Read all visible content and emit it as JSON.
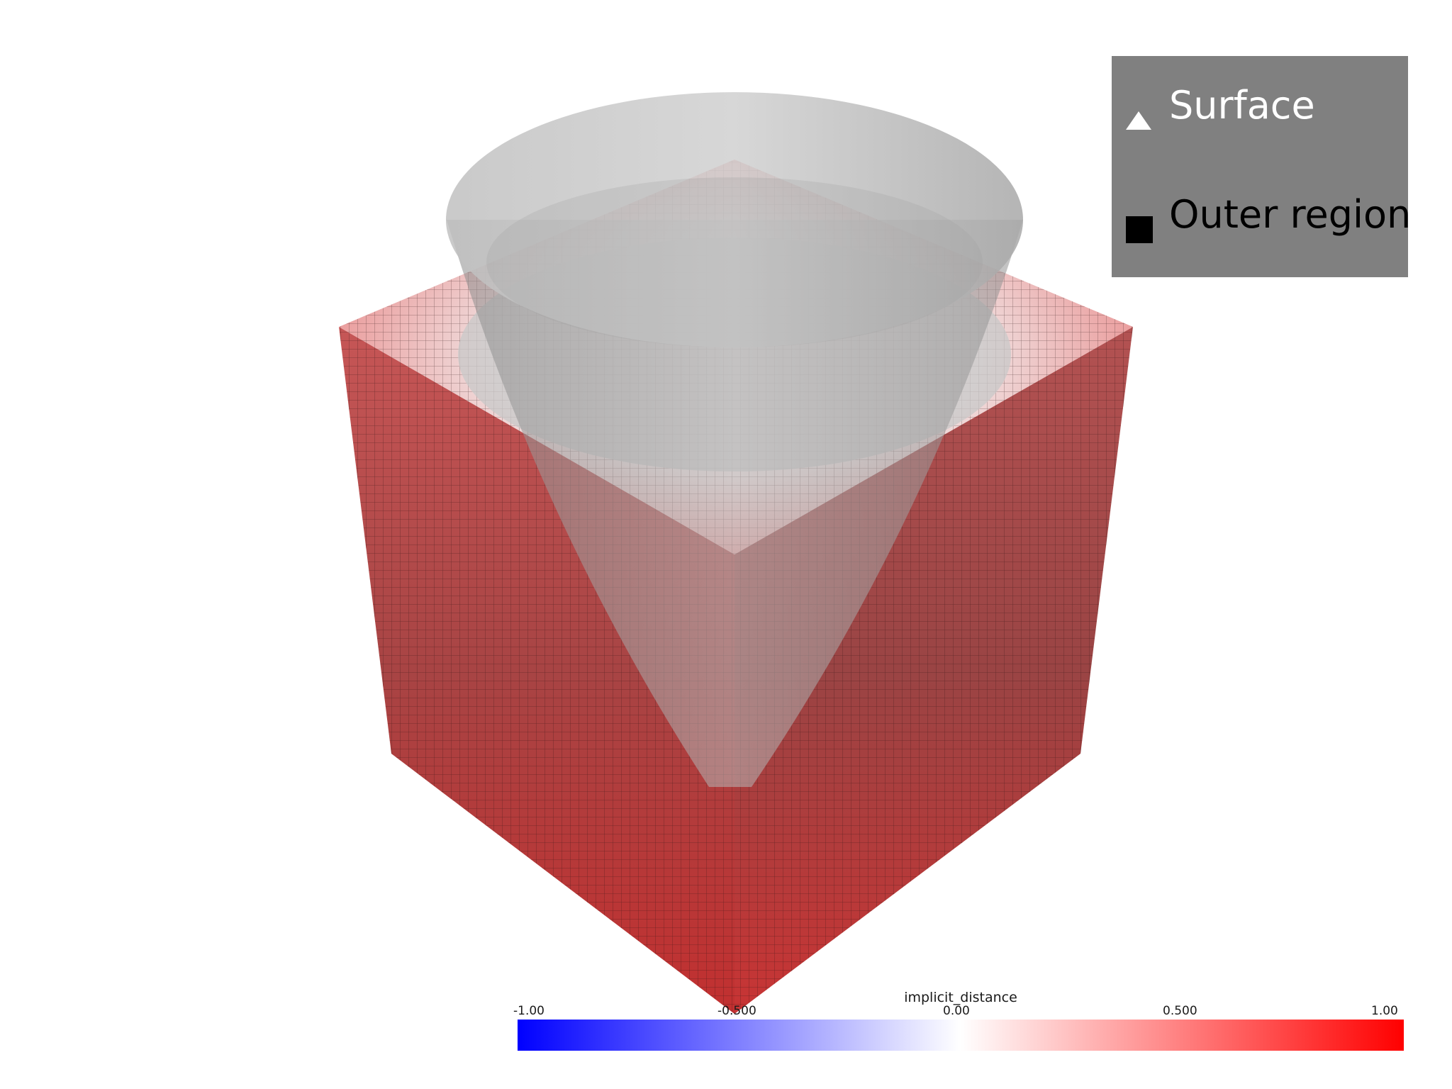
{
  "legend": {
    "entries": [
      {
        "label": "Surface",
        "glyph": "triangle",
        "label_color": "#ffffff",
        "glyph_color": "#ffffff"
      },
      {
        "label": "Outer region",
        "glyph": "square",
        "label_color": "#000000",
        "glyph_color": "#000000"
      }
    ],
    "background": "#808080"
  },
  "colorbar": {
    "title": "implicit_distance",
    "ticks": [
      "-1.00",
      "-0.500",
      "0.00",
      "0.500",
      "1.00"
    ],
    "range": [
      -1.0,
      1.0
    ],
    "colormap": {
      "low": "#0000ff",
      "mid": "#ffffff",
      "high": "#ff0000"
    }
  },
  "scene": {
    "background": "#ffffff",
    "cube_color": "#d23a3a",
    "surface_color": "#a8a8a8",
    "mesh_color": "#2a1010"
  }
}
